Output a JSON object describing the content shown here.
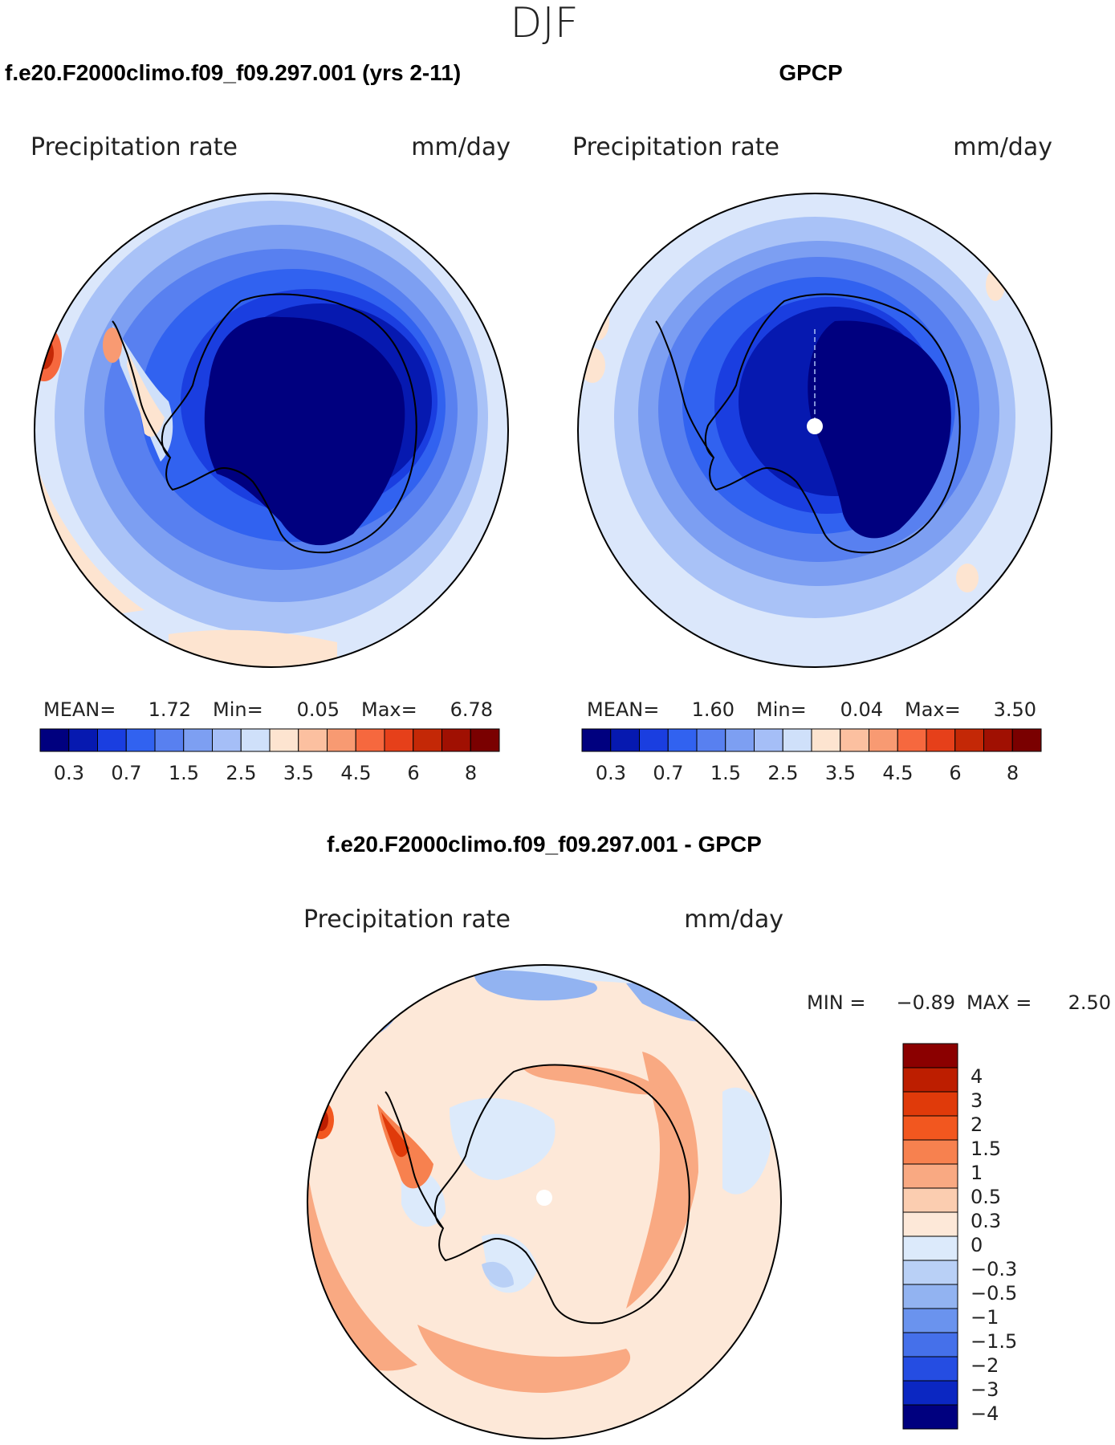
{
  "figure": {
    "season": "DJF"
  },
  "panels": [
    {
      "id": "model",
      "title": "f.e20.F2000climo.f09_f09.297.001 (yrs 2-11)",
      "variable": "Precipitation rate",
      "units": "mm/day",
      "stats": {
        "mean_label": "MEAN=",
        "mean": "1.72",
        "min_label": "Min=",
        "min": "0.05",
        "max_label": "Max=",
        "max": "6.78"
      },
      "colorbar": {
        "tick_labels": [
          "0.3",
          "0.7",
          "1.5",
          "2.5",
          "3.5",
          "4.5",
          "6",
          "8"
        ],
        "levels": [
          0.2,
          0.3,
          0.5,
          0.7,
          1,
          1.5,
          2,
          2.5,
          3,
          3.5,
          4,
          4.5,
          5,
          6,
          7,
          8
        ],
        "colors": [
          "#00007f",
          "#0619b0",
          "#1a3ee0",
          "#3162f0",
          "#5880f0",
          "#7d9ff2",
          "#a5bef7",
          "#cfe0fa",
          "#fde4d0",
          "#fcc0a0",
          "#f89a72",
          "#f6683e",
          "#e6401a",
          "#c42806",
          "#a01002",
          "#7a0000"
        ]
      }
    },
    {
      "id": "obs",
      "title": "GPCP",
      "variable": "Precipitation rate",
      "units": "mm/day",
      "stats": {
        "mean_label": "MEAN=",
        "mean": "1.60",
        "min_label": "Min=",
        "min": "0.04",
        "max_label": "Max=",
        "max": "3.50"
      },
      "colorbar": {
        "tick_labels": [
          "0.3",
          "0.7",
          "1.5",
          "2.5",
          "3.5",
          "4.5",
          "6",
          "8"
        ]
      }
    },
    {
      "id": "diff",
      "title": "f.e20.F2000climo.f09_f09.297.001 - GPCP",
      "variable": "Precipitation rate",
      "units": "mm/day",
      "stats": {
        "min_label": "MIN =",
        "min": "−0.89",
        "max_label": "MAX =",
        "max": "2.50"
      },
      "colorbar": {
        "tick_labels": [
          "4",
          "3",
          "2",
          "1.5",
          "1",
          "0.5",
          "0.3",
          "0",
          "−0.3",
          "−0.5",
          "−1",
          "−1.5",
          "−2",
          "−3",
          "−4"
        ],
        "colors_top_to_bottom": [
          "#8b0000",
          "#bd1e00",
          "#e03a0a",
          "#f2571f",
          "#f7814f",
          "#f9a982",
          "#fbcdb0",
          "#fde8d8",
          "#dceafb",
          "#b9d0f6",
          "#92b3f1",
          "#6a93ee",
          "#4570ea",
          "#254de2",
          "#0b27c2",
          "#00007f"
        ]
      }
    }
  ],
  "chart_data": [
    {
      "type": "heatmap",
      "title": "f.e20.F2000climo.f09_f09.297.001 (yrs 2-11)",
      "projection": "south polar stereographic",
      "variable": "Precipitation rate",
      "units": "mm/day",
      "mean": 1.72,
      "min": 0.05,
      "max": 6.78,
      "contour_levels": [
        0.2,
        0.3,
        0.5,
        0.7,
        1,
        1.5,
        2,
        2.5,
        3,
        3.5,
        4,
        4.5,
        5,
        6,
        7,
        8
      ]
    },
    {
      "type": "heatmap",
      "title": "GPCP",
      "projection": "south polar stereographic",
      "variable": "Precipitation rate",
      "units": "mm/day",
      "mean": 1.6,
      "min": 0.04,
      "max": 3.5,
      "contour_levels": [
        0.2,
        0.3,
        0.5,
        0.7,
        1,
        1.5,
        2,
        2.5,
        3,
        3.5,
        4,
        4.5,
        5,
        6,
        7,
        8
      ]
    },
    {
      "type": "heatmap",
      "title": "f.e20.F2000climo.f09_f09.297.001 - GPCP",
      "projection": "south polar stereographic",
      "variable": "Precipitation rate",
      "units": "mm/day",
      "min": -0.89,
      "max": 2.5,
      "contour_levels": [
        -5,
        -4,
        -3,
        -2,
        -1.5,
        -1,
        -0.5,
        -0.3,
        0,
        0.3,
        0.5,
        1,
        1.5,
        2,
        3,
        4,
        5
      ]
    }
  ]
}
